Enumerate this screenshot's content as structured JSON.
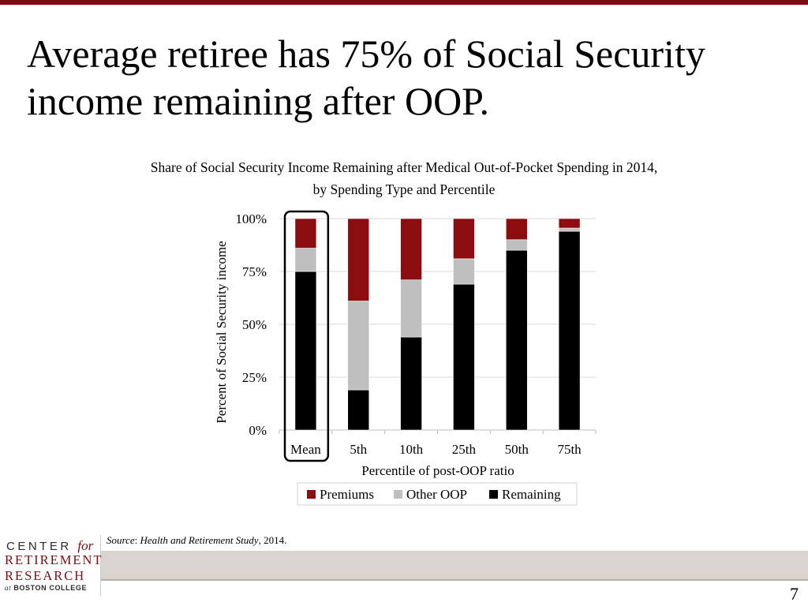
{
  "slide": {
    "title": "Average retiree has 75% of Social Security income remaining after OOP.",
    "page_number": "7",
    "source_label": "Source",
    "source_sep": ": ",
    "source_study": "Health and Retirement Study",
    "source_tail": ", 2014."
  },
  "logo": {
    "word1": "CENTER",
    "word2": "for",
    "line2": "RETIREMENT",
    "line3": "RESEARCH",
    "line4_at": "at",
    "line4": "BOSTON COLLEGE"
  },
  "colors": {
    "premiums": "#8b0d10",
    "other_oop": "#bfbfbf",
    "remaining": "#000000",
    "accent": "#7a0c12"
  },
  "chart_data": {
    "type": "bar",
    "stacked": true,
    "title_line1": "Share of Social Security Income Remaining after Medical Out-of-Pocket Spending in 2014,",
    "title_line2": "by Spending Type and Percentile",
    "xlabel": "Percentile of post-OOP ratio",
    "ylabel": "Percent of Social Security income",
    "ylim": [
      0,
      100
    ],
    "yticks": [
      "0%",
      "25%",
      "50%",
      "75%",
      "100%"
    ],
    "ytick_values": [
      0,
      25,
      50,
      75,
      100
    ],
    "categories": [
      "Mean",
      "5th",
      "10th",
      "25th",
      "50th",
      "75th"
    ],
    "highlighted_category": "Mean",
    "grid": true,
    "legend_position": "bottom",
    "series": [
      {
        "name": "Remaining",
        "values": [
          75,
          19,
          44,
          69,
          85,
          94
        ]
      },
      {
        "name": "Other OOP",
        "values": [
          11,
          42,
          27,
          12,
          5,
          1.5
        ]
      },
      {
        "name": "Premiums",
        "values": [
          14,
          39,
          29,
          19,
          10,
          4.5
        ]
      }
    ],
    "legend": [
      "Premiums",
      "Other OOP",
      "Remaining"
    ]
  }
}
